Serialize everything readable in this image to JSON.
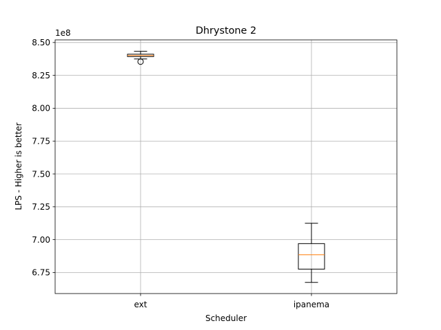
{
  "chart_data": {
    "type": "box",
    "title": "Dhrystone 2",
    "xlabel": "Scheduler",
    "ylabel": "LPS - Higher is better",
    "y_offset_label": "1e8",
    "categories": [
      "ext",
      "ipanema"
    ],
    "ylim": [
      659000000,
      852000000
    ],
    "yticks": [
      675000000,
      700000000,
      725000000,
      750000000,
      775000000,
      800000000,
      825000000,
      850000000
    ],
    "ytick_labels": [
      "6.75",
      "7.00",
      "7.25",
      "7.50",
      "7.75",
      "8.00",
      "8.25",
      "8.50"
    ],
    "grid": true,
    "boxes": [
      {
        "label": "ext",
        "whisker_low": 837500000,
        "q1": 839300000,
        "median": 840100000,
        "q3": 841100000,
        "whisker_high": 843300000,
        "outliers": [
          835400000
        ]
      },
      {
        "label": "ipanema",
        "whisker_low": 667500000,
        "q1": 677600000,
        "median": 688500000,
        "q3": 697000000,
        "whisker_high": 712500000,
        "outliers": []
      }
    ],
    "colors": {
      "box": "#000000",
      "median": "#ff7f0e",
      "grid": "#b0b0b0"
    }
  }
}
